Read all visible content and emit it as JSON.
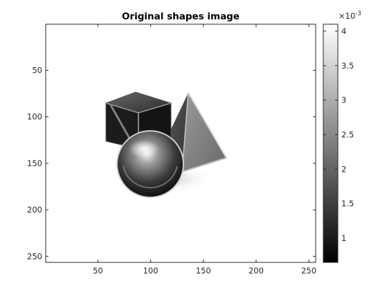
{
  "chart_data": {
    "type": "heatmap",
    "title": "Original shapes image",
    "xlabel": "",
    "ylabel": "",
    "x_ticks": [
      50,
      100,
      150,
      200,
      250
    ],
    "y_ticks": [
      50,
      100,
      150,
      200,
      250
    ],
    "x_tick_labels": [
      "50",
      "100",
      "150",
      "200",
      "250"
    ],
    "y_tick_labels": [
      "50",
      "100",
      "150",
      "200",
      "250"
    ],
    "xlim": [
      0.5,
      256.5
    ],
    "ylim": [
      0.5,
      256.5
    ],
    "y_direction": "reverse",
    "colormap": "gray",
    "colorbar": {
      "location": "right",
      "limits": [
        0.00065,
        0.0041
      ],
      "ticks": [
        0.001,
        0.0015,
        0.002,
        0.0025,
        0.003,
        0.0035,
        0.004
      ],
      "tick_labels": [
        "1",
        "1.5",
        "2",
        "2.5",
        "3",
        "3.5",
        "4"
      ],
      "exponent_label": "×10",
      "exponent_value": "-3"
    },
    "background_value": 0.0041,
    "image_content": [
      {
        "shape": "cube",
        "center": [
          90,
          105
        ],
        "shade": "dark"
      },
      {
        "shape": "pyramid",
        "center": [
          140,
          120
        ],
        "shade": "medium"
      },
      {
        "shape": "sphere",
        "center": [
          105,
          150
        ],
        "shade": "gradient"
      }
    ]
  }
}
